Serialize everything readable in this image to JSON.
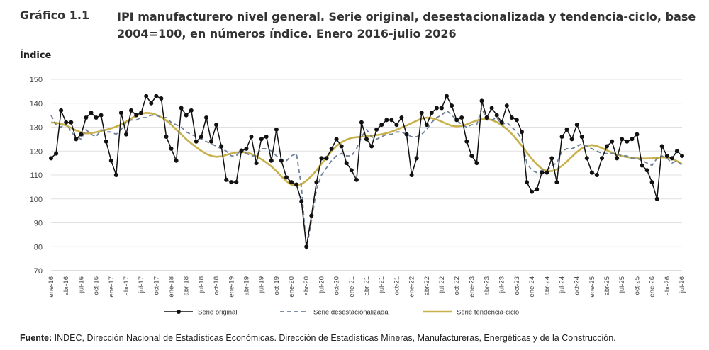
{
  "header": {
    "number": "Gráfico 1.1",
    "title": "IPI manufacturero nivel general. Serie original, desestacionalizada y tendencia-ciclo, base 2004=100, en números índice. Enero 2016-julio 2026"
  },
  "footer": {
    "label": "Fuente:",
    "text": " INDEC, Dirección Nacional de Estadísticas Económicas. Dirección de Estadísticas Mineras, Manufactureras, Energéticas y de la Construcción."
  },
  "chart_data": {
    "type": "line",
    "ylabel": "Índice",
    "xlabel": "",
    "ylim": [
      70,
      150
    ],
    "yticks": [
      70,
      80,
      90,
      100,
      110,
      120,
      130,
      140,
      150
    ],
    "grid": true,
    "legend_position": "bottom",
    "start": "ene-16",
    "n_months": 127,
    "x_tick_labels": [
      "ene-16",
      "abr-16",
      "jul-16",
      "oct-16",
      "ene-17",
      "abr-17",
      "jul-17",
      "oct-17",
      "ene-18",
      "abr-18",
      "jul-18",
      "oct-18",
      "ene-19",
      "abr-19",
      "jul-19",
      "oct-19",
      "ene-20",
      "abr-20",
      "jul-20",
      "oct-20",
      "ene-21",
      "abr-21",
      "jul-21",
      "oct-21",
      "ene-22",
      "abr-22",
      "jul-22",
      "oct-22",
      "ene-23",
      "abr-23",
      "jul-23",
      "oct-23",
      "ene-24",
      "abr-24",
      "jul-24",
      "oct-24",
      "ene-25",
      "abr-25",
      "jul-25",
      "oct-25",
      "ene-26",
      "abr-26",
      "jul-26"
    ],
    "series": [
      {
        "name": "Serie original",
        "color": "#111111",
        "style": "line-markers",
        "values": [
          117,
          119,
          137,
          132,
          132,
          125,
          127,
          134,
          136,
          134,
          135,
          124,
          116,
          110,
          136,
          127,
          137,
          135,
          136,
          143,
          140,
          143,
          142,
          126,
          121,
          116,
          138,
          135,
          137,
          124,
          126,
          134,
          124,
          131,
          122,
          108,
          107,
          107,
          120,
          121,
          126,
          115,
          125,
          126,
          116,
          129,
          116,
          109,
          107,
          106,
          99,
          80,
          93,
          107,
          117,
          117,
          121,
          125,
          122,
          115,
          112,
          108,
          132,
          125,
          122,
          129,
          131,
          133,
          133,
          131,
          134,
          127,
          110,
          117,
          136,
          131,
          136,
          138,
          138,
          143,
          139,
          133,
          134,
          124,
          118,
          115,
          141,
          134,
          138,
          135,
          132,
          139,
          134,
          133,
          128,
          107,
          103,
          104,
          111,
          111,
          117,
          107,
          126,
          129,
          125,
          131,
          126,
          117,
          111,
          110,
          117,
          122,
          124,
          117,
          125,
          124,
          125,
          127,
          114,
          112,
          107,
          100,
          122,
          118,
          117,
          120,
          118
        ]
      },
      {
        "name": "Serie desestacionalizada",
        "color": "#6f8099",
        "style": "dashed",
        "values": [
          135,
          131,
          130,
          132,
          128,
          126,
          125,
          129,
          127,
          126,
          129,
          128,
          128,
          127,
          129,
          132,
          133,
          133,
          134,
          134,
          135,
          135,
          134,
          134,
          132,
          131,
          130,
          128,
          127,
          126,
          125,
          124,
          123,
          122,
          121,
          120,
          118,
          118,
          121,
          119,
          118,
          118,
          121,
          121,
          120,
          118,
          116,
          116,
          118,
          119,
          105,
          79,
          91,
          104,
          110,
          113,
          116,
          118,
          119,
          118,
          118,
          121,
          126,
          129,
          126,
          125,
          126,
          127,
          127,
          128,
          128,
          127,
          126,
          126,
          127,
          129,
          132,
          134,
          135,
          137,
          135,
          133,
          131,
          130,
          131,
          131,
          138,
          133,
          133,
          134,
          131,
          132,
          130,
          128,
          125,
          115,
          112,
          111,
          112,
          112,
          114,
          115,
          120,
          121,
          121,
          122,
          123,
          122,
          121,
          120,
          119,
          119,
          119,
          119,
          118,
          118,
          117,
          117,
          116,
          115,
          114,
          117,
          118,
          117,
          115,
          116,
          114
        ]
      },
      {
        "name": "Serie tendencia-ciclo",
        "color": "#c8b14a",
        "style": "solid",
        "values": [
          132,
          131.8,
          131.4,
          130.7,
          129.7,
          128.6,
          127.8,
          127.4,
          127.5,
          127.9,
          128.4,
          128.9,
          129.5,
          130.2,
          131.1,
          132.3,
          133.6,
          134.8,
          135.6,
          136,
          135.8,
          135.2,
          134.2,
          132.8,
          131,
          129,
          127,
          125,
          123.2,
          121.6,
          120.1,
          118.8,
          118,
          117.6,
          117.8,
          118.4,
          119,
          119.4,
          119.6,
          119.4,
          118.8,
          117.8,
          116.6,
          115.2,
          113.6,
          111.6,
          109.4,
          107.4,
          106,
          105.6,
          106.2,
          107.6,
          109.6,
          112,
          114.6,
          117.4,
          120,
          122.1,
          123.7,
          124.8,
          125.5,
          125.8,
          126,
          126.2,
          126.4,
          126.7,
          127,
          127.5,
          128.1,
          128.9,
          129.8,
          130.7,
          131.7,
          132.7,
          133.6,
          134,
          133.8,
          133.2,
          132.3,
          131.4,
          130.6,
          130.3,
          130.5,
          131.2,
          132,
          132.8,
          133.3,
          133.4,
          133,
          132.1,
          130.8,
          129.2,
          127.2,
          124.8,
          122.2,
          119.4,
          116.8,
          114.4,
          112.6,
          111.6,
          111.6,
          112.4,
          113.8,
          115.6,
          117.6,
          119.6,
          121.2,
          122.2,
          122.5,
          122.1,
          121.3,
          120.3,
          119.3,
          118.5,
          117.9,
          117.5,
          117.2,
          117,
          116.9,
          116.9,
          117,
          117.2,
          117.4,
          117.3,
          116.8,
          115.8,
          114.5
        ]
      }
    ]
  }
}
